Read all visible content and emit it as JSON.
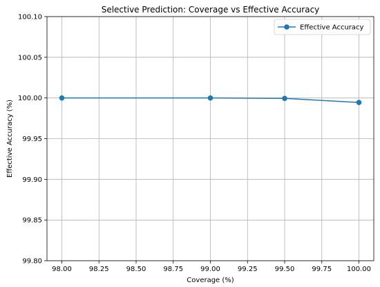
{
  "chart_data": {
    "type": "line",
    "title": "Selective Prediction: Coverage vs Effective Accuracy",
    "xlabel": "Coverage (%)",
    "ylabel": "Effective Accuracy (%)",
    "xlim": [
      97.9,
      100.1
    ],
    "ylim": [
      99.8,
      100.1
    ],
    "x_ticks": [
      98.0,
      98.25,
      98.5,
      98.75,
      99.0,
      99.25,
      99.5,
      99.75,
      100.0
    ],
    "x_tick_labels": [
      "98.00",
      "98.25",
      "98.50",
      "98.75",
      "99.00",
      "99.25",
      "99.50",
      "99.75",
      "100.00"
    ],
    "y_ticks": [
      99.8,
      99.85,
      99.9,
      99.95,
      100.0,
      100.05,
      100.1
    ],
    "y_tick_labels": [
      "99.80",
      "99.85",
      "99.90",
      "99.95",
      "100.00",
      "100.05",
      "100.10"
    ],
    "grid": true,
    "legend_position": "top-right",
    "series": [
      {
        "name": "Effective Accuracy",
        "color": "#1f77b4",
        "marker": "circle",
        "x": [
          98.0,
          99.0,
          99.5,
          100.0
        ],
        "y": [
          100.0,
          100.0,
          99.9995,
          99.9945
        ]
      }
    ]
  }
}
